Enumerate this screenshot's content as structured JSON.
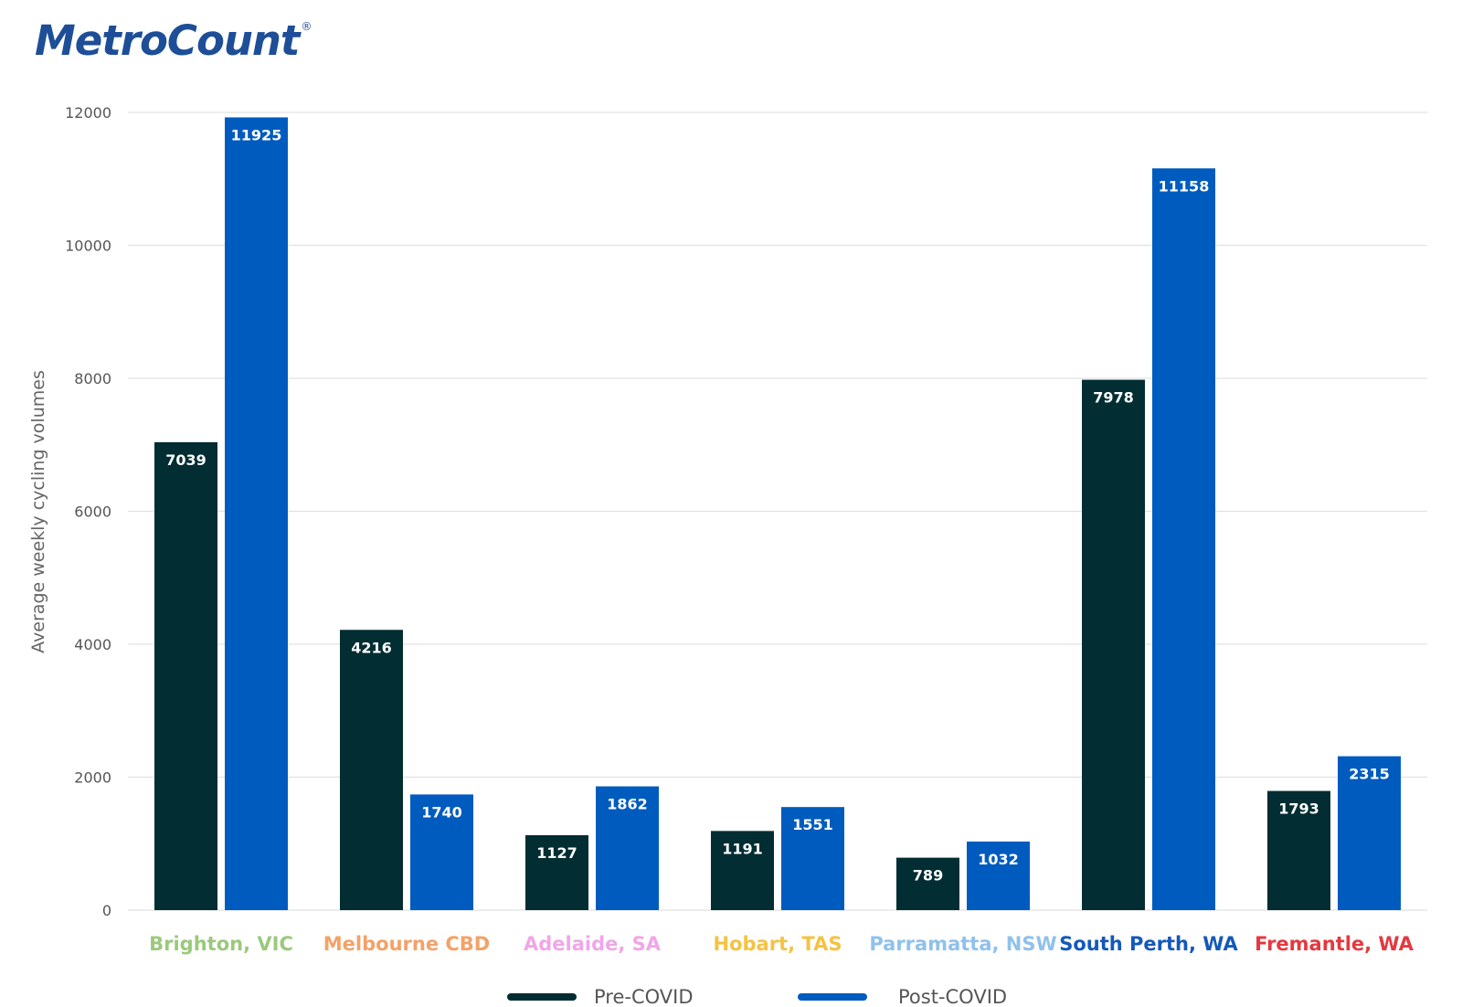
{
  "logo": {
    "text": "MetroCount",
    "registered": "®"
  },
  "chart_data": {
    "type": "bar",
    "title": "",
    "xlabel": "",
    "ylabel": "Average weekly cycling volumes",
    "ylim": [
      0,
      12000
    ],
    "yticks": [
      0,
      2000,
      4000,
      6000,
      8000,
      10000,
      12000
    ],
    "grid": true,
    "legend_position": "bottom",
    "categories": [
      "Brighton, VIC",
      "Melbourne CBD",
      "Adelaide, SA",
      "Hobart, TAS",
      "Parramatta, NSW",
      "South Perth, WA",
      "Fremantle, WA"
    ],
    "category_colors": [
      "#9bc97c",
      "#f3a268",
      "#f0a6e8",
      "#f5c242",
      "#8fc1ec",
      "#1459b8",
      "#e4393f"
    ],
    "series": [
      {
        "name": "Pre-COVID",
        "color": "#022d33",
        "values": [
          7039,
          4216,
          1127,
          1191,
          789,
          7978,
          1793
        ]
      },
      {
        "name": "Post-COVID",
        "color": "#005bbf",
        "values": [
          11925,
          1740,
          1862,
          1551,
          1032,
          11158,
          2315
        ]
      }
    ]
  }
}
